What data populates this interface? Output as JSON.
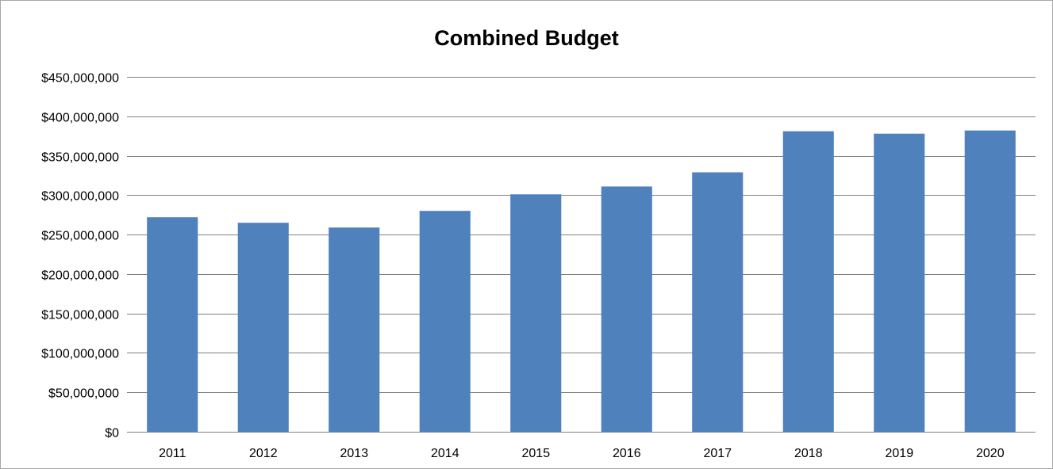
{
  "chart_data": {
    "type": "bar",
    "title": "Combined Budget",
    "xlabel": "",
    "ylabel": "",
    "categories": [
      "2011",
      "2012",
      "2013",
      "2014",
      "2015",
      "2016",
      "2017",
      "2018",
      "2019",
      "2020"
    ],
    "values": [
      272000000,
      265000000,
      259000000,
      280000000,
      301000000,
      311000000,
      329000000,
      381000000,
      378000000,
      382000000
    ],
    "ylim": [
      0,
      450000000
    ],
    "yticks": [
      0,
      50000000,
      100000000,
      150000000,
      200000000,
      250000000,
      300000000,
      350000000,
      400000000,
      450000000
    ],
    "ytick_labels": [
      "$0",
      "$50,000,000",
      "$100,000,000",
      "$150,000,000",
      "$200,000,000",
      "$250,000,000",
      "$300,000,000",
      "$350,000,000",
      "$400,000,000",
      "$450,000,000"
    ],
    "grid": true,
    "legend": "none",
    "bar_color": "#4f81bd",
    "grid_color": "#808080",
    "axis_color": "#808080"
  }
}
